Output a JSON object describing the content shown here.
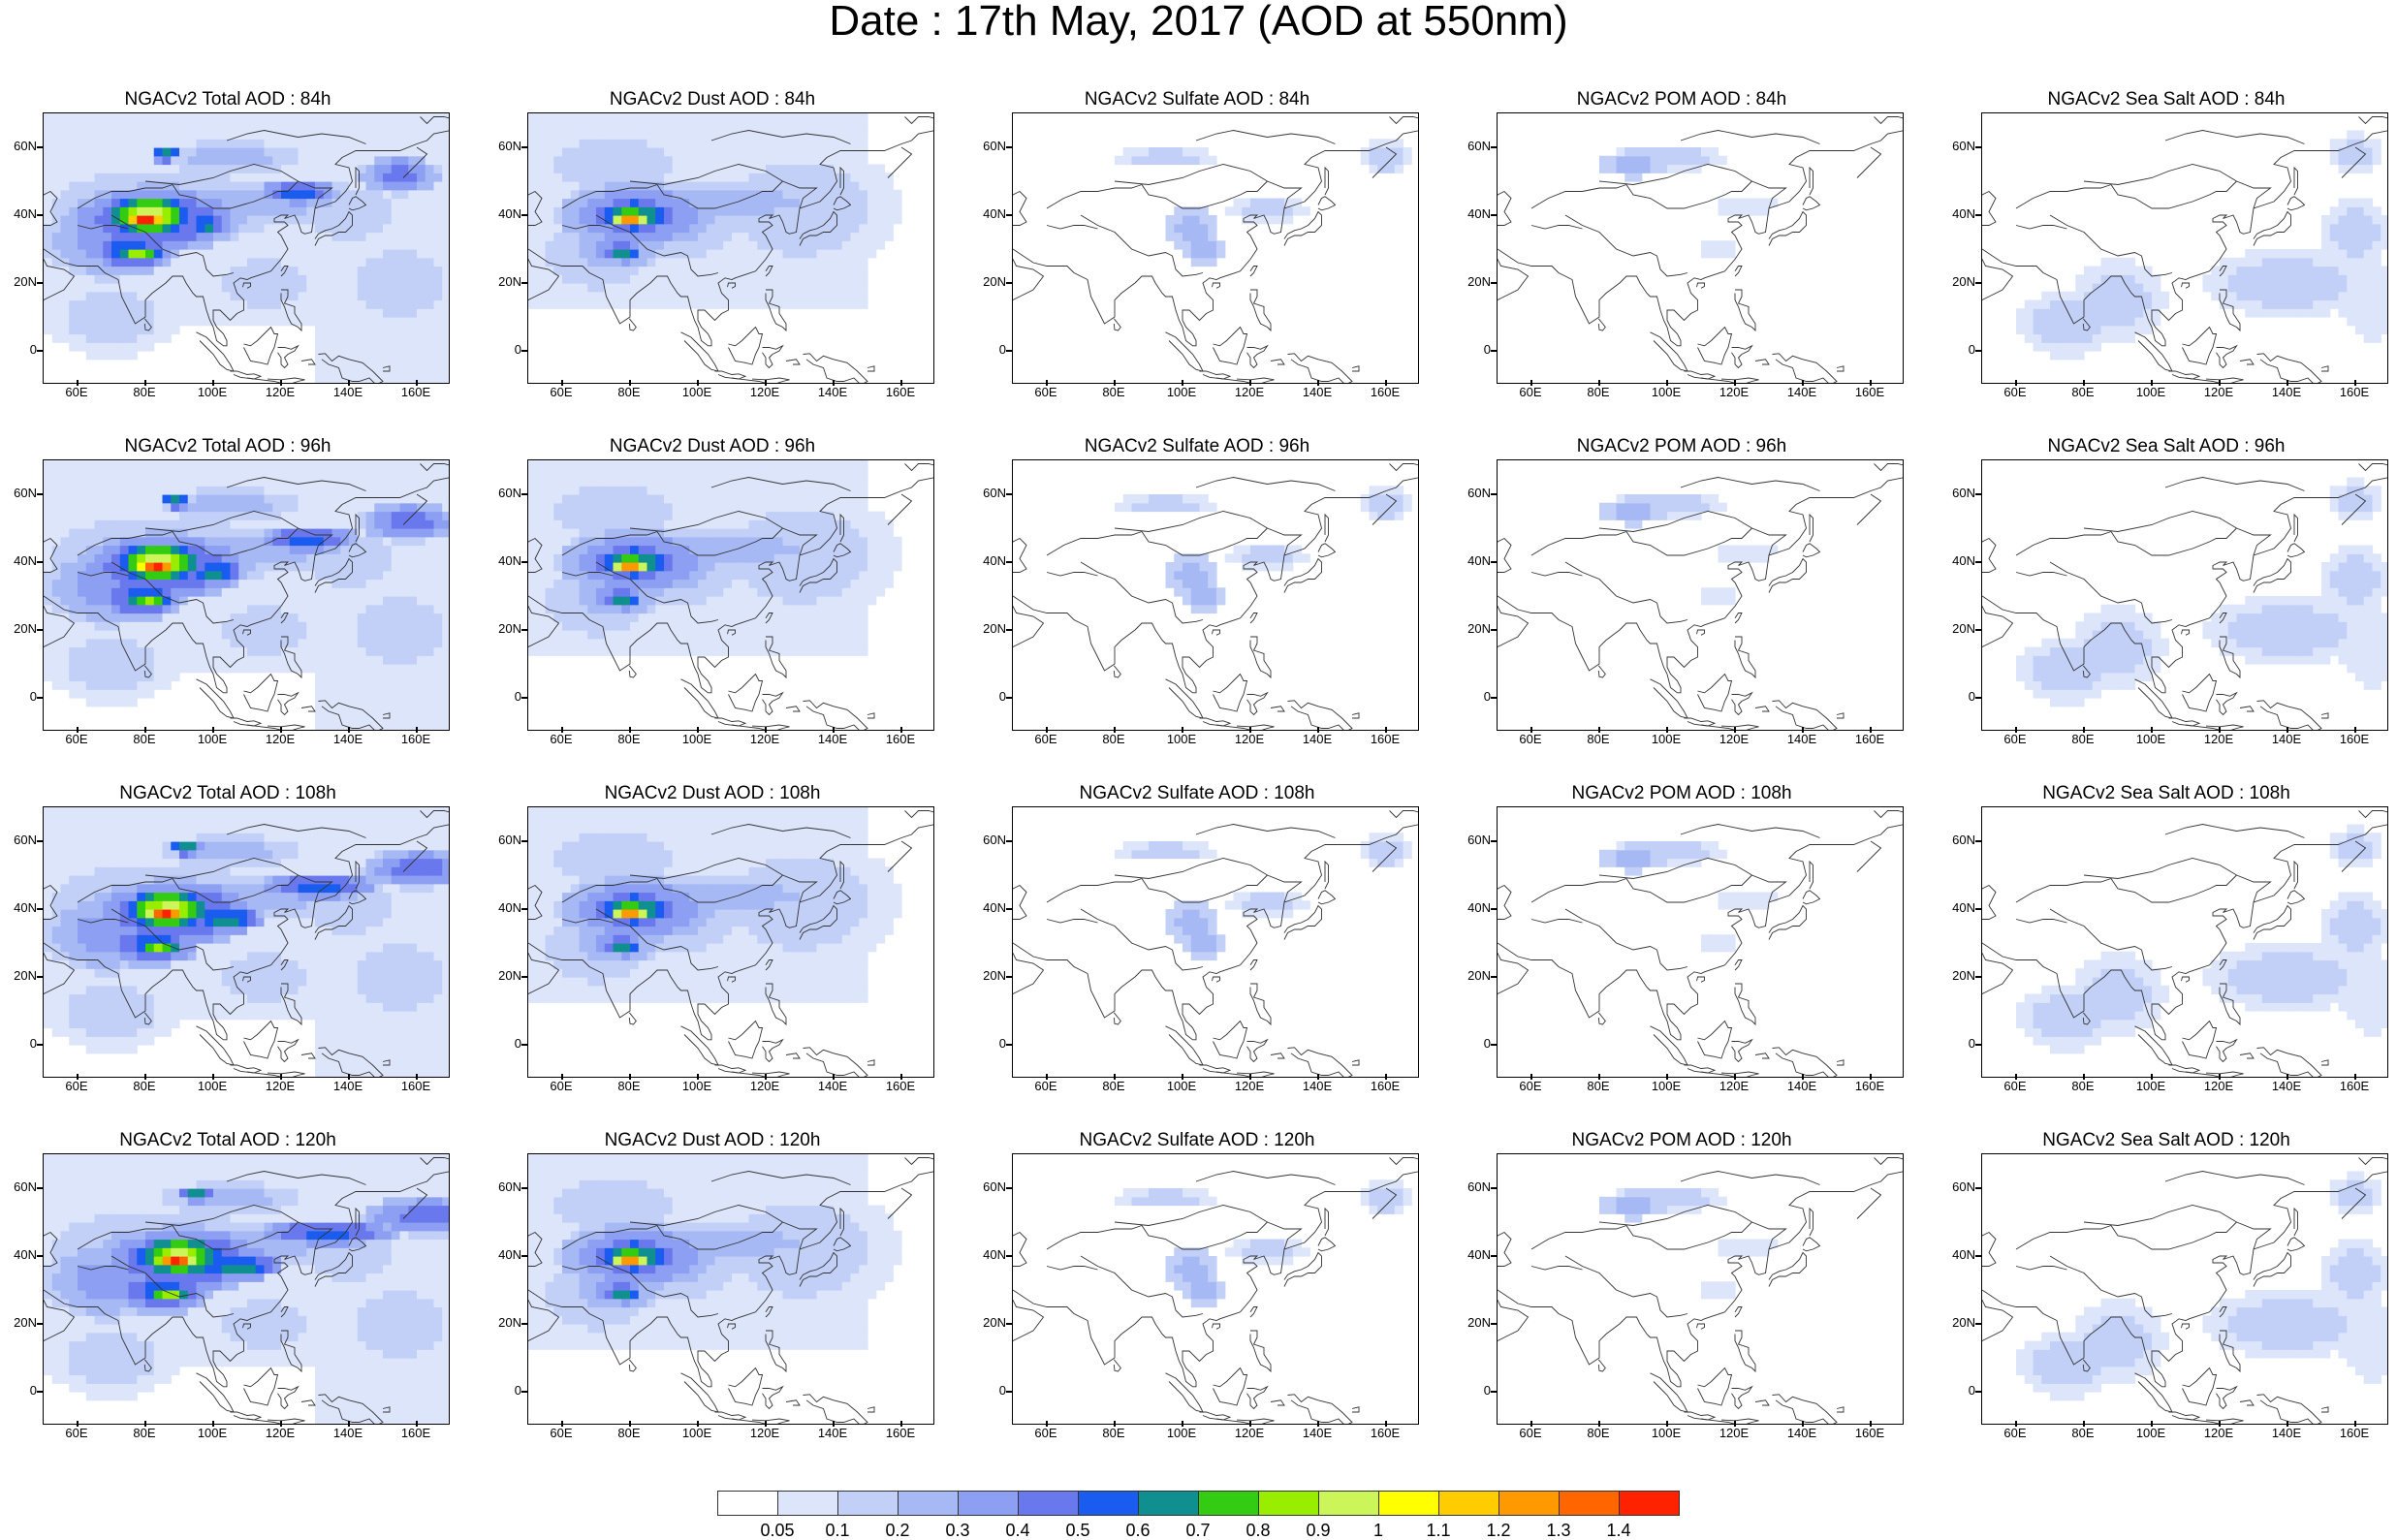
{
  "title": "Date : 17th May, 2017 (AOD at 550nm)",
  "panels": [
    {
      "title": "NGACv2 Total AOD : 84h",
      "species": "total",
      "hour": 84
    },
    {
      "title": "NGACv2 Dust AOD : 84h",
      "species": "dust",
      "hour": 84
    },
    {
      "title": "NGACv2 Sulfate AOD : 84h",
      "species": "sulfate",
      "hour": 84
    },
    {
      "title": "NGACv2 POM AOD : 84h",
      "species": "pom",
      "hour": 84
    },
    {
      "title": "NGACv2 Sea Salt AOD : 84h",
      "species": "seasalt",
      "hour": 84
    },
    {
      "title": "NGACv2 Total AOD : 96h",
      "species": "total",
      "hour": 96
    },
    {
      "title": "NGACv2 Dust AOD : 96h",
      "species": "dust",
      "hour": 96
    },
    {
      "title": "NGACv2 Sulfate AOD : 96h",
      "species": "sulfate",
      "hour": 96
    },
    {
      "title": "NGACv2 POM AOD : 96h",
      "species": "pom",
      "hour": 96
    },
    {
      "title": "NGACv2 Sea Salt AOD : 96h",
      "species": "seasalt",
      "hour": 96
    },
    {
      "title": "NGACv2 Total AOD : 108h",
      "species": "total",
      "hour": 108
    },
    {
      "title": "NGACv2 Dust AOD : 108h",
      "species": "dust",
      "hour": 108
    },
    {
      "title": "NGACv2 Sulfate AOD : 108h",
      "species": "sulfate",
      "hour": 108
    },
    {
      "title": "NGACv2 POM AOD : 108h",
      "species": "pom",
      "hour": 108
    },
    {
      "title": "NGACv2 Sea Salt AOD : 108h",
      "species": "seasalt",
      "hour": 108
    },
    {
      "title": "NGACv2 Total AOD : 120h",
      "species": "total",
      "hour": 120
    },
    {
      "title": "NGACv2 Dust AOD : 120h",
      "species": "dust",
      "hour": 120
    },
    {
      "title": "NGACv2 Sulfate AOD : 120h",
      "species": "sulfate",
      "hour": 120
    },
    {
      "title": "NGACv2 POM AOD : 120h",
      "species": "pom",
      "hour": 120
    },
    {
      "title": "NGACv2 Sea Salt  AOD : 120h",
      "species": "seasalt",
      "hour": 120
    }
  ],
  "lat_ticks": [
    "60N",
    "40N",
    "20N",
    "0"
  ],
  "lon_ticks": [
    "60E",
    "80E",
    "100E",
    "120E",
    "140E",
    "160E"
  ],
  "colorbar": {
    "labels": [
      "0.05",
      "0.1",
      "0.2",
      "0.3",
      "0.4",
      "0.5",
      "0.6",
      "0.7",
      "0.8",
      "0.9",
      "1",
      "1.1",
      "1.2",
      "1.3",
      "1.4"
    ],
    "colors": [
      "#ffffff",
      "#dde5fb",
      "#c2d0f8",
      "#a7b9f5",
      "#8c9ff2",
      "#6a78ee",
      "#1a5cf0",
      "#0f8f8f",
      "#33cc12",
      "#99ee00",
      "#ccf55a",
      "#ffff00",
      "#ffcc00",
      "#ff9900",
      "#ff6600",
      "#ff2200"
    ]
  }
}
